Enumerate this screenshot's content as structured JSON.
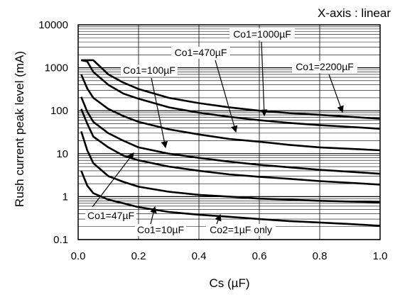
{
  "chart_data": {
    "type": "line",
    "title": "",
    "annotation_top_right": "X-axis : linear",
    "xlabel": "Cs (µF)",
    "ylabel": "Rush current peak level (mA)",
    "x_scale": "linear",
    "y_scale": "log",
    "xlim": [
      0,
      1.0
    ],
    "ylim": [
      0.1,
      10000
    ],
    "x_ticks": [
      "0.0",
      "0.2",
      "0.4",
      "0.6",
      "0.8",
      "1.0"
    ],
    "y_ticks": [
      "10000",
      "1000",
      "100",
      "10",
      "1",
      "0.1"
    ],
    "grid": true,
    "series": [
      {
        "name": "Co1=2200µF",
        "x": [
          0.01,
          0.03,
          0.05,
          0.1,
          0.15,
          0.2,
          0.3,
          0.4,
          0.5,
          0.6,
          0.7,
          0.8,
          0.9,
          1.0
        ],
        "y": [
          1500,
          1500,
          1500,
          700,
          450,
          320,
          200,
          150,
          120,
          100,
          88,
          80,
          72,
          65
        ]
      },
      {
        "name": "Co1=1000µF",
        "x": [
          0.01,
          0.03,
          0.05,
          0.1,
          0.15,
          0.2,
          0.3,
          0.4,
          0.5,
          0.6,
          0.7,
          0.8,
          0.9,
          1.0
        ],
        "y": [
          1500,
          1400,
          800,
          400,
          250,
          190,
          120,
          90,
          72,
          60,
          52,
          46,
          42,
          38
        ]
      },
      {
        "name": "Co1=470µF",
        "x": [
          0.01,
          0.03,
          0.05,
          0.1,
          0.15,
          0.2,
          0.3,
          0.4,
          0.5,
          0.6,
          0.7,
          0.8,
          0.9,
          1.0
        ],
        "y": [
          700,
          330,
          200,
          110,
          75,
          55,
          37,
          28,
          22,
          19,
          16,
          14,
          13,
          12
        ]
      },
      {
        "name": "Co1=100µF",
        "x": [
          0.01,
          0.03,
          0.05,
          0.1,
          0.15,
          0.2,
          0.3,
          0.4,
          0.5,
          0.6,
          0.7,
          0.8,
          0.9,
          1.0
        ],
        "y": [
          210,
          95,
          55,
          30,
          20,
          14,
          10,
          8,
          6.5,
          5.5,
          4.8,
          4.2,
          3.8,
          3.4
        ]
      },
      {
        "name": "Co1=47µF",
        "x": [
          0.01,
          0.03,
          0.05,
          0.1,
          0.15,
          0.2,
          0.3,
          0.4,
          0.5,
          0.6,
          0.7,
          0.8,
          0.9,
          1.0
        ],
        "y": [
          110,
          50,
          25,
          14,
          9,
          7,
          5,
          4,
          3.3,
          2.9,
          2.6,
          2.3,
          2.1,
          1.9
        ]
      },
      {
        "name": "Co1=10µF",
        "x": [
          0.01,
          0.03,
          0.05,
          0.1,
          0.15,
          0.2,
          0.3,
          0.4,
          0.5,
          0.6,
          0.7,
          0.8,
          0.9,
          1.0
        ],
        "y": [
          33,
          12,
          6,
          3,
          2.2,
          1.7,
          1.3,
          1.1,
          1.0,
          0.9,
          0.85,
          0.8,
          0.77,
          0.74
        ]
      },
      {
        "name": "Co2=1µF only",
        "x": [
          0.01,
          0.03,
          0.05,
          0.1,
          0.15,
          0.2,
          0.3,
          0.4,
          0.5,
          0.6,
          0.7,
          0.8,
          0.9,
          1.0
        ],
        "y": [
          4,
          1.8,
          1.2,
          0.85,
          0.7,
          0.57,
          0.44,
          0.38,
          0.34,
          0.3,
          0.27,
          0.25,
          0.23,
          0.21
        ]
      }
    ],
    "labels": [
      {
        "text": "Co1=1000µF",
        "series": "Co1=1000µF"
      },
      {
        "text": "Co1=470µF",
        "series": "Co1=470µF"
      },
      {
        "text": "Co1=2200µF",
        "series": "Co1=2200µF"
      },
      {
        "text": "Co1=100µF",
        "series": "Co1=100µF"
      },
      {
        "text": "Co1=47µF",
        "series": "Co1=47µF"
      },
      {
        "text": "Co1=10µF",
        "series": "Co1=10µF"
      },
      {
        "text": "Co2=1µF only",
        "series": "Co2=1µF only"
      }
    ],
    "line_color": "#000000",
    "grid_color": "#000000"
  }
}
